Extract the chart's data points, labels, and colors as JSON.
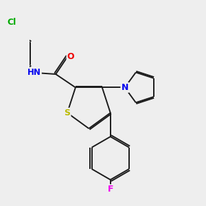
{
  "background_color": "#eeeeee",
  "bond_color": "#1a1a1a",
  "atom_colors": {
    "Cl": "#00aa00",
    "N": "#0000ee",
    "O": "#ee0000",
    "S": "#bbbb00",
    "F": "#ee00ee"
  },
  "figsize": [
    3.0,
    3.0
  ],
  "dpi": 100,
  "lw": 1.4,
  "dbl_off": 0.028
}
